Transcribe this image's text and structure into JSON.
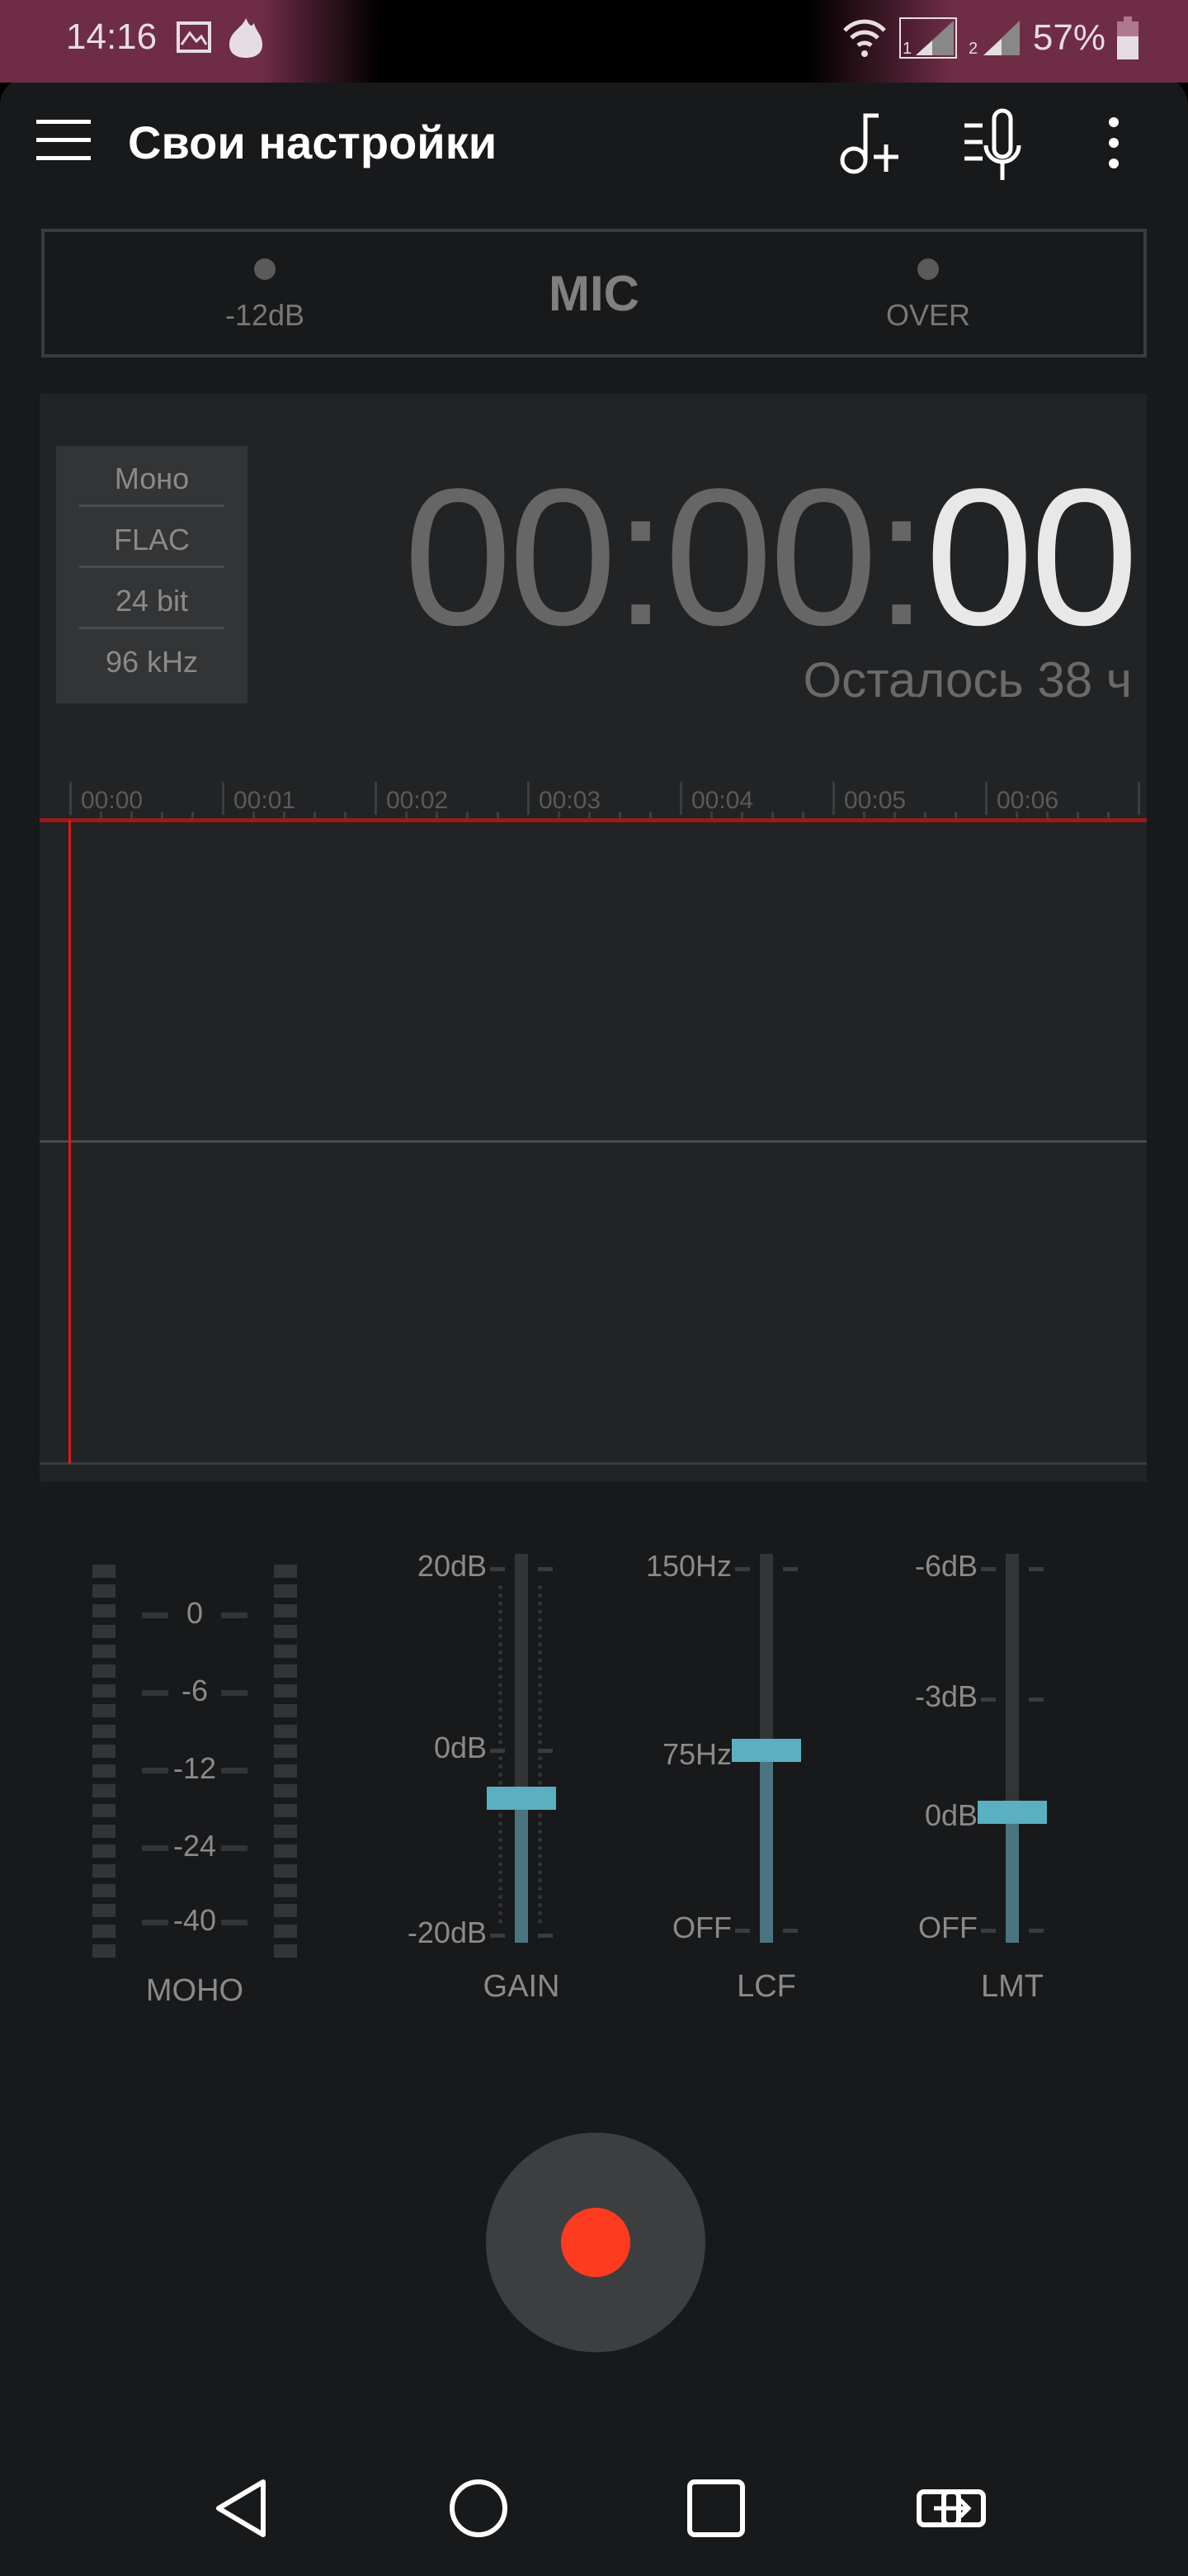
{
  "status_bar": {
    "time": "14:16",
    "battery": "57%",
    "icons": [
      "gallery-icon",
      "flame-icon",
      "wifi-icon",
      "sim1-signal-icon",
      "sim2-signal-icon",
      "battery-icon"
    ]
  },
  "toolbar": {
    "title": "Свои настройки",
    "icons": [
      "menu-icon",
      "add-music-icon",
      "mic-settings-icon",
      "more-icon"
    ]
  },
  "input_indicator": {
    "left_label": "-12dB",
    "center_label": "MIC",
    "right_label": "OVER"
  },
  "recording_info": {
    "channels": "Моно",
    "format": "FLAC",
    "bit_depth": "24 bit",
    "sample_rate": "96 kHz"
  },
  "timer": {
    "hours": "00",
    "minutes": "00",
    "seconds": "00",
    "remaining": "Осталось 38 ч"
  },
  "timeline": {
    "labels": [
      "00:00",
      "00:01",
      "00:02",
      "00:03",
      "00:04",
      "00:05",
      "00:06"
    ]
  },
  "meter": {
    "label": "MOHO",
    "scale": [
      "0",
      "-6",
      "-12",
      "-24",
      "-40"
    ]
  },
  "sliders": [
    {
      "name": "GAIN",
      "scale": [
        "20dB",
        "0dB",
        "-20dB"
      ],
      "value_fraction": 0.37
    },
    {
      "name": "LCF",
      "scale": [
        "150Hz",
        "75Hz",
        "OFF"
      ],
      "value": "75Hz",
      "value_fraction": 0.5
    },
    {
      "name": "LMT",
      "scale": [
        "-6dB",
        "-3dB",
        "0dB",
        "OFF"
      ],
      "value": "0dB",
      "value_fraction": 0.33
    }
  ],
  "colors": {
    "accent": "#5aafc1",
    "record": "#ff3b1f",
    "playhead": "#e01818",
    "background": "#18191b"
  },
  "nav_bar": {
    "icons": [
      "back-icon",
      "home-icon",
      "recents-icon",
      "switch-apps-icon"
    ]
  }
}
